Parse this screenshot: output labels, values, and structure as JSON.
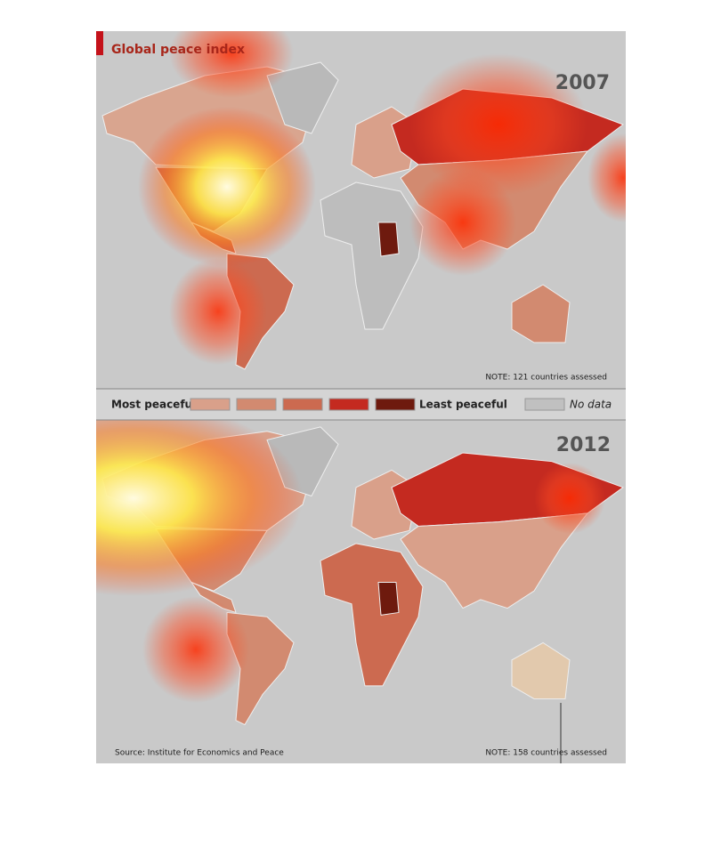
{
  "header": {
    "title": "Global peace index"
  },
  "maps": [
    {
      "year": "2007",
      "note": "NOTE: 121 countries assessed"
    },
    {
      "year": "2012",
      "note": "NOTE: 158 countries assessed"
    }
  ],
  "legend": {
    "most": "Most peaceful",
    "least": "Least peaceful",
    "no_data": "No data",
    "colors": [
      "#d9a08a",
      "#d28a70",
      "#cc6a50",
      "#c42a20",
      "#6e1a0e"
    ],
    "no_data_color": "#c0c0c0"
  },
  "source": "Source: Institute for Economics and Peace"
}
